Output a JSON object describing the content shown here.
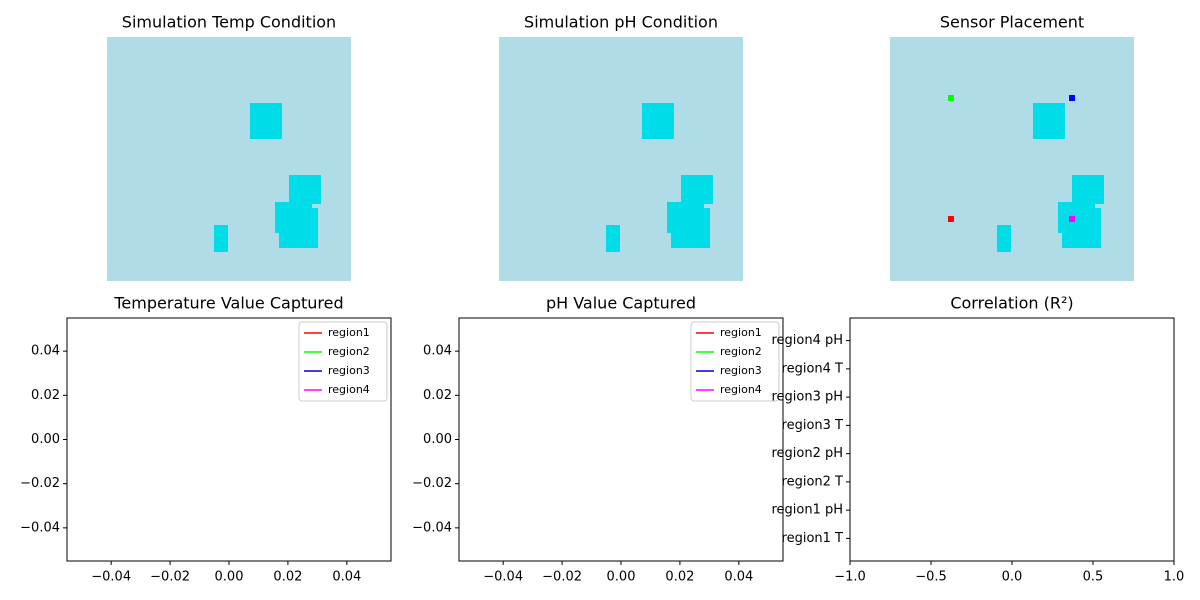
{
  "chart_data": [
    {
      "type": "image",
      "title": "Simulation Temp Condition"
    },
    {
      "type": "image",
      "title": "Simulation pH Condition"
    },
    {
      "type": "image",
      "title": "Sensor Placement"
    },
    {
      "type": "line",
      "title": "Temperature Value Captured",
      "series": [
        {
          "name": "region1",
          "color": "#ff0000",
          "values": []
        },
        {
          "name": "region2",
          "color": "#00ff00",
          "values": []
        },
        {
          "name": "region3",
          "color": "#0000cc",
          "values": []
        },
        {
          "name": "region4",
          "color": "#ff00ff",
          "values": []
        }
      ],
      "xlim": [
        -0.055,
        0.055
      ],
      "xticks": [
        {
          "value": -0.04,
          "label": "−0.04"
        },
        {
          "value": -0.02,
          "label": "−0.02"
        },
        {
          "value": 0,
          "label": "0.00"
        },
        0.02,
        0.04
      ],
      "ylim": [
        -0.055,
        0.055
      ],
      "yticks": [
        {
          "value": -0.04,
          "label": "−0.04"
        },
        {
          "value": -0.02,
          "label": "−0.02"
        },
        {
          "value": 0,
          "label": "0.00"
        },
        0.02,
        0.04
      ],
      "legend": "upper right"
    },
    {
      "type": "line",
      "title": "pH Value Captured",
      "series": [
        {
          "name": "region1",
          "color": "#ff0000",
          "values": []
        },
        {
          "name": "region2",
          "color": "#00ff00",
          "values": []
        },
        {
          "name": "region3",
          "color": "#0000cc",
          "values": []
        },
        {
          "name": "region4",
          "color": "#ff00ff",
          "values": []
        }
      ],
      "xlim": [
        -0.055,
        0.055
      ],
      "xticks": [
        {
          "value": -0.04,
          "label": "−0.04"
        },
        {
          "value": -0.02,
          "label": "−0.02"
        },
        {
          "value": 0,
          "label": "0.00"
        },
        0.02,
        0.04
      ],
      "ylim": [
        -0.055,
        0.055
      ],
      "yticks": [
        {
          "value": -0.04,
          "label": "−0.04"
        },
        {
          "value": -0.02,
          "label": "−0.02"
        },
        {
          "value": 0,
          "label": "0.00"
        },
        0.02,
        0.04
      ],
      "legend": "upper right"
    },
    {
      "type": "barh",
      "title": "Correlation (R²)",
      "categories": [
        "region1 T",
        "region1 pH",
        "region2 T",
        "region2 pH",
        "region3 T",
        "region3 pH",
        "region4 T",
        "region4 pH"
      ],
      "values": [
        null,
        null,
        null,
        null,
        null,
        null,
        null,
        null
      ],
      "xlim": [
        -1,
        1
      ],
      "xticks": [
        {
          "value": -1,
          "label": "−1.0"
        },
        {
          "value": -0.5,
          "label": "−0.5"
        },
        {
          "value": 0,
          "label": "0.0"
        },
        0.5,
        {
          "value": 1,
          "label": "1.0"
        }
      ]
    }
  ]
}
